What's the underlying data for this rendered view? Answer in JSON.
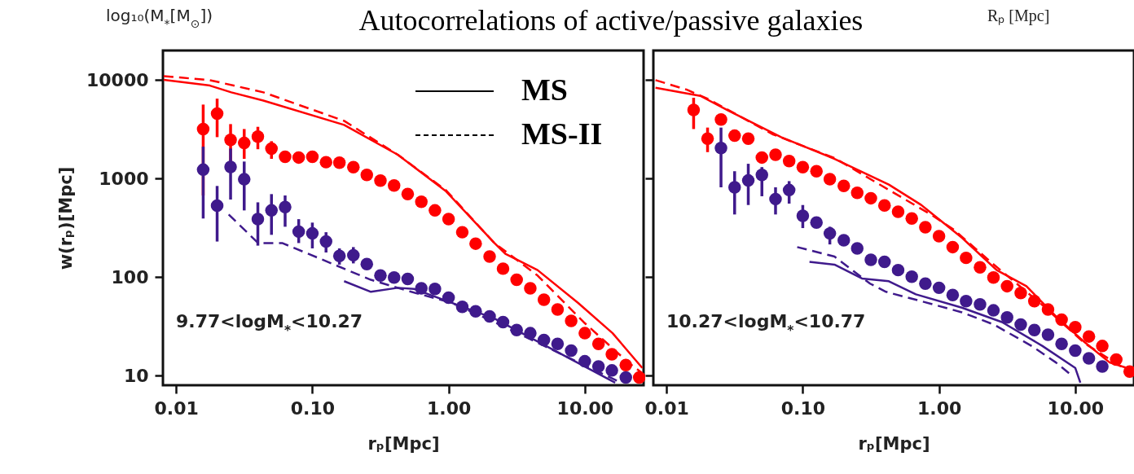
{
  "chart_data": [
    {
      "type": "scatter",
      "title": "Autocorrelations of active/passive galaxies",
      "xlabel": "rₚ[Mpc]",
      "ylabel": "w(rₚ)[Mpc]",
      "annotations": [
        "9.77<logM$_{*}$<10.27",
        "log₁₀(M$_{*}$[M$_{⊙}$])",
        "MS",
        "MS-II"
      ],
      "log": "xy",
      "xlim": [
        0.008,
        27
      ],
      "ylim": [
        8,
        20000
      ],
      "xticks": [
        {
          "value": 0.01,
          "label": "0.01"
        },
        {
          "value": 0.1,
          "label": "0.10"
        },
        {
          "value": 1,
          "label": "1.00"
        },
        {
          "value": 10,
          "label": "10.00"
        }
      ],
      "yticks": [
        10,
        100,
        1000,
        10000
      ],
      "x": [
        0.0158,
        0.02,
        0.0251,
        0.0316,
        0.0398,
        0.0501,
        0.0631,
        0.0794,
        0.1,
        0.126,
        0.158,
        0.2,
        0.251,
        0.316,
        0.398,
        0.501,
        0.631,
        0.794,
        1,
        1.26,
        1.58,
        2,
        2.51,
        3.16,
        3.98,
        5.01,
        6.31,
        7.94,
        10,
        12.6,
        15.8,
        20,
        25.1
      ],
      "series": [
        {
          "color": "#ff0000",
          "marker": "circle",
          "values": [
            3190,
            4580,
            2480,
            2300,
            2670,
            2020,
            1670,
            1640,
            1670,
            1470,
            1450,
            1310,
            1090,
            957,
            853,
            697,
            583,
            476,
            388,
            286,
            219,
            162,
            122,
            94,
            77,
            59,
            47,
            36,
            27,
            21,
            16.5,
            12.8,
            9.6
          ],
          "errors": [
            [
              675,
              5650
            ],
            [
              2640,
              6490
            ],
            [
              1400,
              3580
            ],
            [
              1590,
              3190
            ],
            [
              1990,
              3360
            ],
            [
              1590,
              2400
            ],
            null,
            null,
            null,
            null,
            null,
            null,
            null,
            null,
            null,
            null,
            null,
            null,
            null,
            null,
            null,
            null,
            null,
            null,
            null,
            null,
            null,
            null,
            null,
            null,
            null,
            null,
            null
          ]
        },
        {
          "color": "#3f1a8c",
          "marker": "circle",
          "values": [
            1233,
            533,
            1312,
            986,
            388,
            476,
            514,
            290,
            278,
            230,
            164,
            167,
            136,
            104,
            99,
            96,
            77,
            76,
            62,
            50,
            45,
            40,
            35,
            29,
            27,
            23,
            21,
            18,
            14,
            12.4,
            11.3,
            9.6,
            null
          ],
          "errors": [
            [
              394,
              2113
            ],
            [
              230,
              843
            ],
            [
              614,
              2023
            ],
            [
              476,
              1492
            ],
            [
              209,
              575
            ],
            [
              269,
              697
            ],
            [
              325,
              675
            ],
            [
              222,
              388
            ],
            [
              196,
              358
            ],
            [
              178,
              286
            ],
            [
              134,
              196
            ],
            [
              138,
              202
            ],
            null,
            null,
            null,
            null,
            null,
            null,
            null,
            null,
            null,
            null,
            null,
            null,
            null,
            null,
            null,
            null,
            null,
            null,
            null,
            null,
            null
          ]
        },
        {
          "type": "line",
          "color": "#ff0000",
          "line_style": "solid",
          "x": [
            0.0081,
            0.0177,
            0.0254,
            0.0437,
            0.171,
            0.424,
            0.96,
            2.17,
            2.61,
            4.5,
            8.9,
            16,
            26.4
          ],
          "values": [
            10100,
            8810,
            7520,
            6210,
            3510,
            1750,
            741,
            222,
            173,
            118,
            55,
            27,
            12
          ]
        },
        {
          "type": "line",
          "color": "#ff0000",
          "line_style": "dashed",
          "x": [
            0.0081,
            0.0177,
            0.0437,
            0.171,
            0.424,
            0.96,
            2.17,
            4.5,
            9.8,
            21,
            26.4
          ],
          "values": [
            11000,
            10000,
            7520,
            3860,
            1750,
            760,
            222,
            104,
            35,
            13.5,
            10.6
          ]
        },
        {
          "type": "line",
          "color": "#3f1a8c",
          "line_style": "solid",
          "x": [
            0.171,
            0.269,
            0.424,
            0.556,
            2.17,
            16.7
          ],
          "values": [
            91,
            71,
            78,
            76,
            38,
            8.5
          ]
        },
        {
          "type": "line",
          "color": "#3f1a8c",
          "line_style": "dashed",
          "x": [
            0.0243,
            0.04,
            0.06,
            0.109,
            0.269,
            0.532,
            1.05,
            2.17,
            18.4
          ],
          "values": [
            433,
            222,
            222,
            158,
            94,
            71,
            55,
            35,
            8.5
          ]
        }
      ]
    },
    {
      "type": "scatter",
      "xlabel": "rₚ[Mpc]",
      "annotations": [
        "10.27<logM$_{*}$<10.77",
        "Rₚ [Mpc]"
      ],
      "log": "xy",
      "xlim": [
        0.008,
        27
      ],
      "ylim": [
        8,
        20000
      ],
      "xticks": [
        {
          "value": 0.01,
          "label": "0.01"
        },
        {
          "value": 0.1,
          "label": "0.10"
        },
        {
          "value": 1,
          "label": "1.00"
        },
        {
          "value": 10,
          "label": "10.00"
        }
      ],
      "yticks": [
        10,
        100,
        1000,
        10000
      ],
      "tick_labels": "x",
      "x": [
        0.0158,
        0.02,
        0.0251,
        0.0316,
        0.0398,
        0.0501,
        0.0631,
        0.0794,
        0.1,
        0.126,
        0.158,
        0.2,
        0.251,
        0.316,
        0.398,
        0.501,
        0.631,
        0.794,
        1,
        1.26,
        1.58,
        2,
        2.51,
        3.16,
        3.98,
        5.01,
        6.31,
        7.94,
        10,
        12.6,
        15.8,
        20,
        25.1
      ],
      "series": [
        {
          "color": "#ff0000",
          "marker": "circle",
          "values": [
            4980,
            2550,
            3990,
            2730,
            2550,
            1640,
            1750,
            1510,
            1310,
            1190,
            987,
            843,
            719,
            633,
            534,
            461,
            394,
            321,
            261,
            202,
            157,
            126,
            99,
            81,
            69,
            57,
            47,
            37,
            31,
            25,
            20,
            14.6,
            11
          ],
          "errors": [
            [
              3190,
              6620
            ],
            [
              1860,
              3300
            ],
            null,
            null,
            null,
            null,
            null,
            null,
            null,
            null,
            null,
            null,
            null,
            null,
            null,
            null,
            null,
            null,
            null,
            null,
            null,
            null,
            null,
            null,
            null,
            null,
            null,
            null,
            null,
            null,
            null,
            null,
            null
          ]
        },
        {
          "color": "#3f1a8c",
          "marker": "circle",
          "values": [
            null,
            null,
            2050,
            817,
            958,
            1090,
            621,
            766,
            419,
            358,
            278,
            237,
            196,
            150,
            143,
            118,
            101,
            86,
            78,
            66,
            57,
            53,
            46,
            39,
            33,
            29,
            26,
            21,
            18,
            15,
            12.4,
            null,
            null
          ],
          "errors": [
            null,
            null,
            [
              817,
              3300
            ],
            [
              433,
              1190
            ],
            [
              540,
              1416
            ],
            [
              663,
              1310
            ],
            [
              433,
              817
            ],
            [
              558,
              944
            ],
            [
              315,
              540
            ],
            null,
            [
              215,
              325
            ],
            null,
            null,
            null,
            null,
            null,
            null,
            null,
            null,
            null,
            null,
            null,
            null,
            null,
            null,
            null,
            null,
            null,
            null,
            null,
            null,
            null,
            null
          ]
        },
        {
          "type": "line",
          "color": "#ff0000",
          "line_style": "solid",
          "x": [
            0.0083,
            0.0177,
            0.0279,
            0.0693,
            0.171,
            0.428,
            0.74,
            1.47,
            2.65,
            4.38,
            7.22,
            11.4,
            17.9,
            25.8
          ],
          "values": [
            8380,
            6920,
            4980,
            2640,
            1590,
            871,
            541,
            252,
            118,
            81,
            40,
            22.6,
            13.6,
            11.6
          ]
        },
        {
          "type": "line",
          "color": "#ff0000",
          "line_style": "dashed",
          "x": [
            0.0083,
            0.0141,
            0.0203,
            0.0605,
            0.171,
            0.87,
            1.28,
            2.53,
            5.75,
            11.9,
            22.5
          ],
          "values": [
            10000,
            8000,
            6410,
            2810,
            1620,
            433,
            305,
            134,
            52,
            21,
            12
          ]
        },
        {
          "type": "line",
          "color": "#3f1a8c",
          "line_style": "solid",
          "x": [
            0.112,
            0.171,
            0.272,
            0.428,
            0.676,
            1.47,
            2.9,
            5.75,
            10,
            10.9
          ],
          "values": [
            143,
            134,
            97,
            91,
            67,
            49,
            35,
            20,
            12,
            8.5
          ]
        },
        {
          "type": "line",
          "color": "#3f1a8c",
          "line_style": "dashed",
          "x": [
            0.091,
            0.171,
            0.312,
            0.408,
            0.676,
            1.47,
            2.53,
            4.8,
            7.22,
            9
          ],
          "values": [
            202,
            162,
            86,
            71,
            59,
            44,
            33,
            20,
            13.6,
            10.6
          ]
        }
      ]
    }
  ]
}
